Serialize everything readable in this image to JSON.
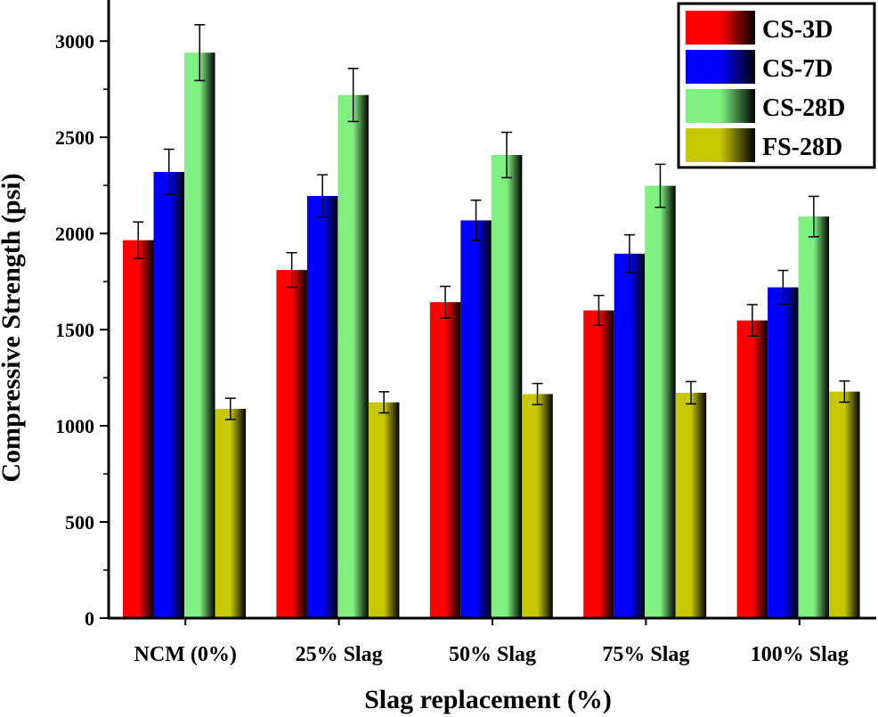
{
  "chart_data": {
    "type": "bar",
    "title": "",
    "xlabel": "Slag replacement (%)",
    "ylabel": "Compressive Strength (psi)",
    "ylim": [
      0,
      3200
    ],
    "yticks": [
      "0",
      "500",
      "1000",
      "1500",
      "2000",
      "2500",
      "3000"
    ],
    "grid": false,
    "legend_position": "top-right",
    "categories": [
      "NCM (0%)",
      "25% Slag",
      "50% Slag",
      "75% Slag",
      "100% Slag"
    ],
    "series": [
      {
        "name": "CS-3D",
        "color": "#ff0000",
        "values": [
          1965,
          1810,
          1643,
          1600,
          1548
        ],
        "errors": [
          95,
          90,
          82,
          78,
          82
        ]
      },
      {
        "name": "CS-7D",
        "color": "#0000ff",
        "values": [
          2320,
          2195,
          2068,
          1895,
          1720
        ],
        "errors": [
          118,
          110,
          105,
          98,
          88
        ]
      },
      {
        "name": "CS-28D",
        "color": "#80f080",
        "values": [
          2940,
          2720,
          2408,
          2248,
          2088
        ],
        "errors": [
          145,
          138,
          118,
          112,
          105
        ]
      },
      {
        "name": "FS-28D",
        "color": "#c8c800",
        "values": [
          1088,
          1122,
          1165,
          1172,
          1178
        ],
        "errors": [
          55,
          55,
          55,
          58,
          55
        ]
      }
    ]
  }
}
